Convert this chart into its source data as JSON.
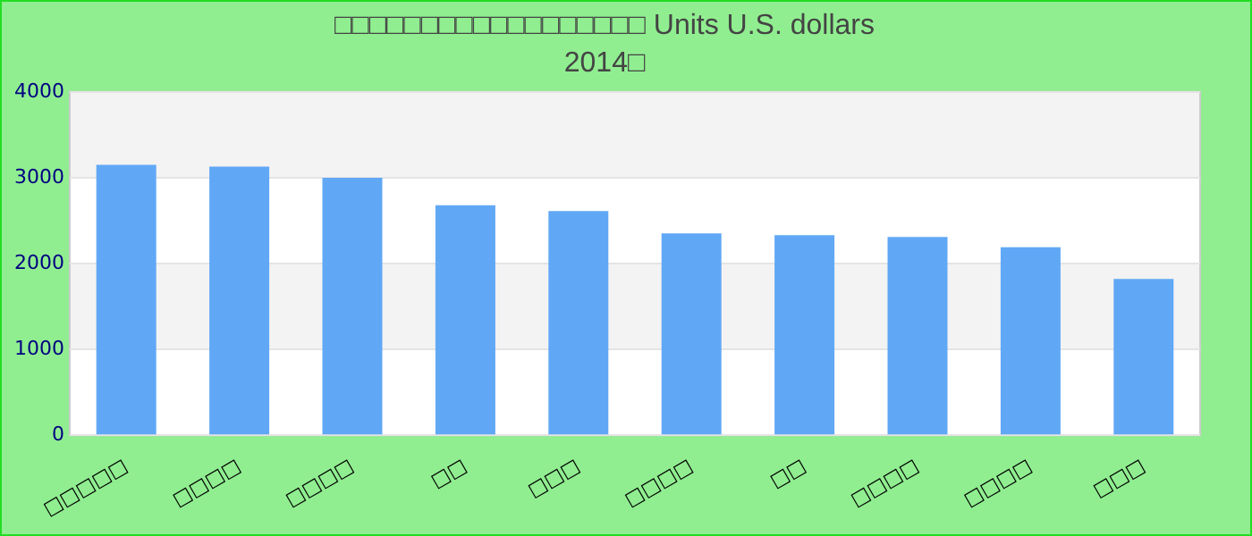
{
  "chart_data": {
    "type": "bar",
    "title": "□□□□□□□□□□□□□□□□□□ Units U.S. dollars",
    "subtitle": "2014□",
    "categories": [
      "□□□□□",
      "□□□□",
      "□□□□",
      "□□",
      "□□□",
      "□□□□",
      "□□",
      "□□□□",
      "□□□□",
      "□□□"
    ],
    "values": [
      3150,
      3130,
      3000,
      2680,
      2610,
      2350,
      2330,
      2310,
      2190,
      1820
    ],
    "color": "#60a8f5",
    "ylim": [
      0,
      4000
    ],
    "yticks": [
      0,
      1000,
      2000,
      3000,
      4000
    ],
    "grid": true,
    "legend": false
  }
}
